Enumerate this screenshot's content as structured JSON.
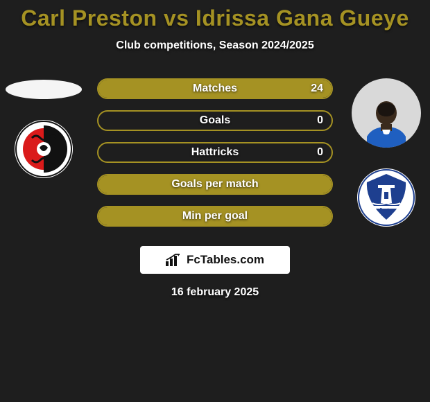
{
  "title": "Carl Preston vs Idrissa Gana Gueye",
  "title_color": "#a59223",
  "subtitle": "Club competitions, Season 2024/2025",
  "date": "16 february 2025",
  "colors": {
    "bar_border": "#a59223",
    "bar_fill": "#a59223"
  },
  "left": {
    "player_name": "Carl Preston",
    "player_photo": "empty",
    "club": "AFC Bournemouth",
    "club_badge_bg": "#ffffff"
  },
  "right": {
    "player_name": "Idrissa Gana Gueye",
    "player_photo": "present",
    "shirt_color": "#1f5fc0",
    "club": "Everton",
    "club_badge_bg": "#1e3f8f"
  },
  "bars": [
    {
      "label": "Matches",
      "left_value": "",
      "right_value": "24",
      "fill_side": "right",
      "fill_pct": 100
    },
    {
      "label": "Goals",
      "left_value": "",
      "right_value": "0",
      "fill_side": "none",
      "fill_pct": 0
    },
    {
      "label": "Hattricks",
      "left_value": "",
      "right_value": "0",
      "fill_side": "none",
      "fill_pct": 0
    },
    {
      "label": "Goals per match",
      "left_value": "",
      "right_value": "",
      "fill_side": "full",
      "fill_pct": 100
    },
    {
      "label": "Min per goal",
      "left_value": "",
      "right_value": "",
      "fill_side": "full",
      "fill_pct": 100
    }
  ],
  "attribution": "FcTables.com"
}
